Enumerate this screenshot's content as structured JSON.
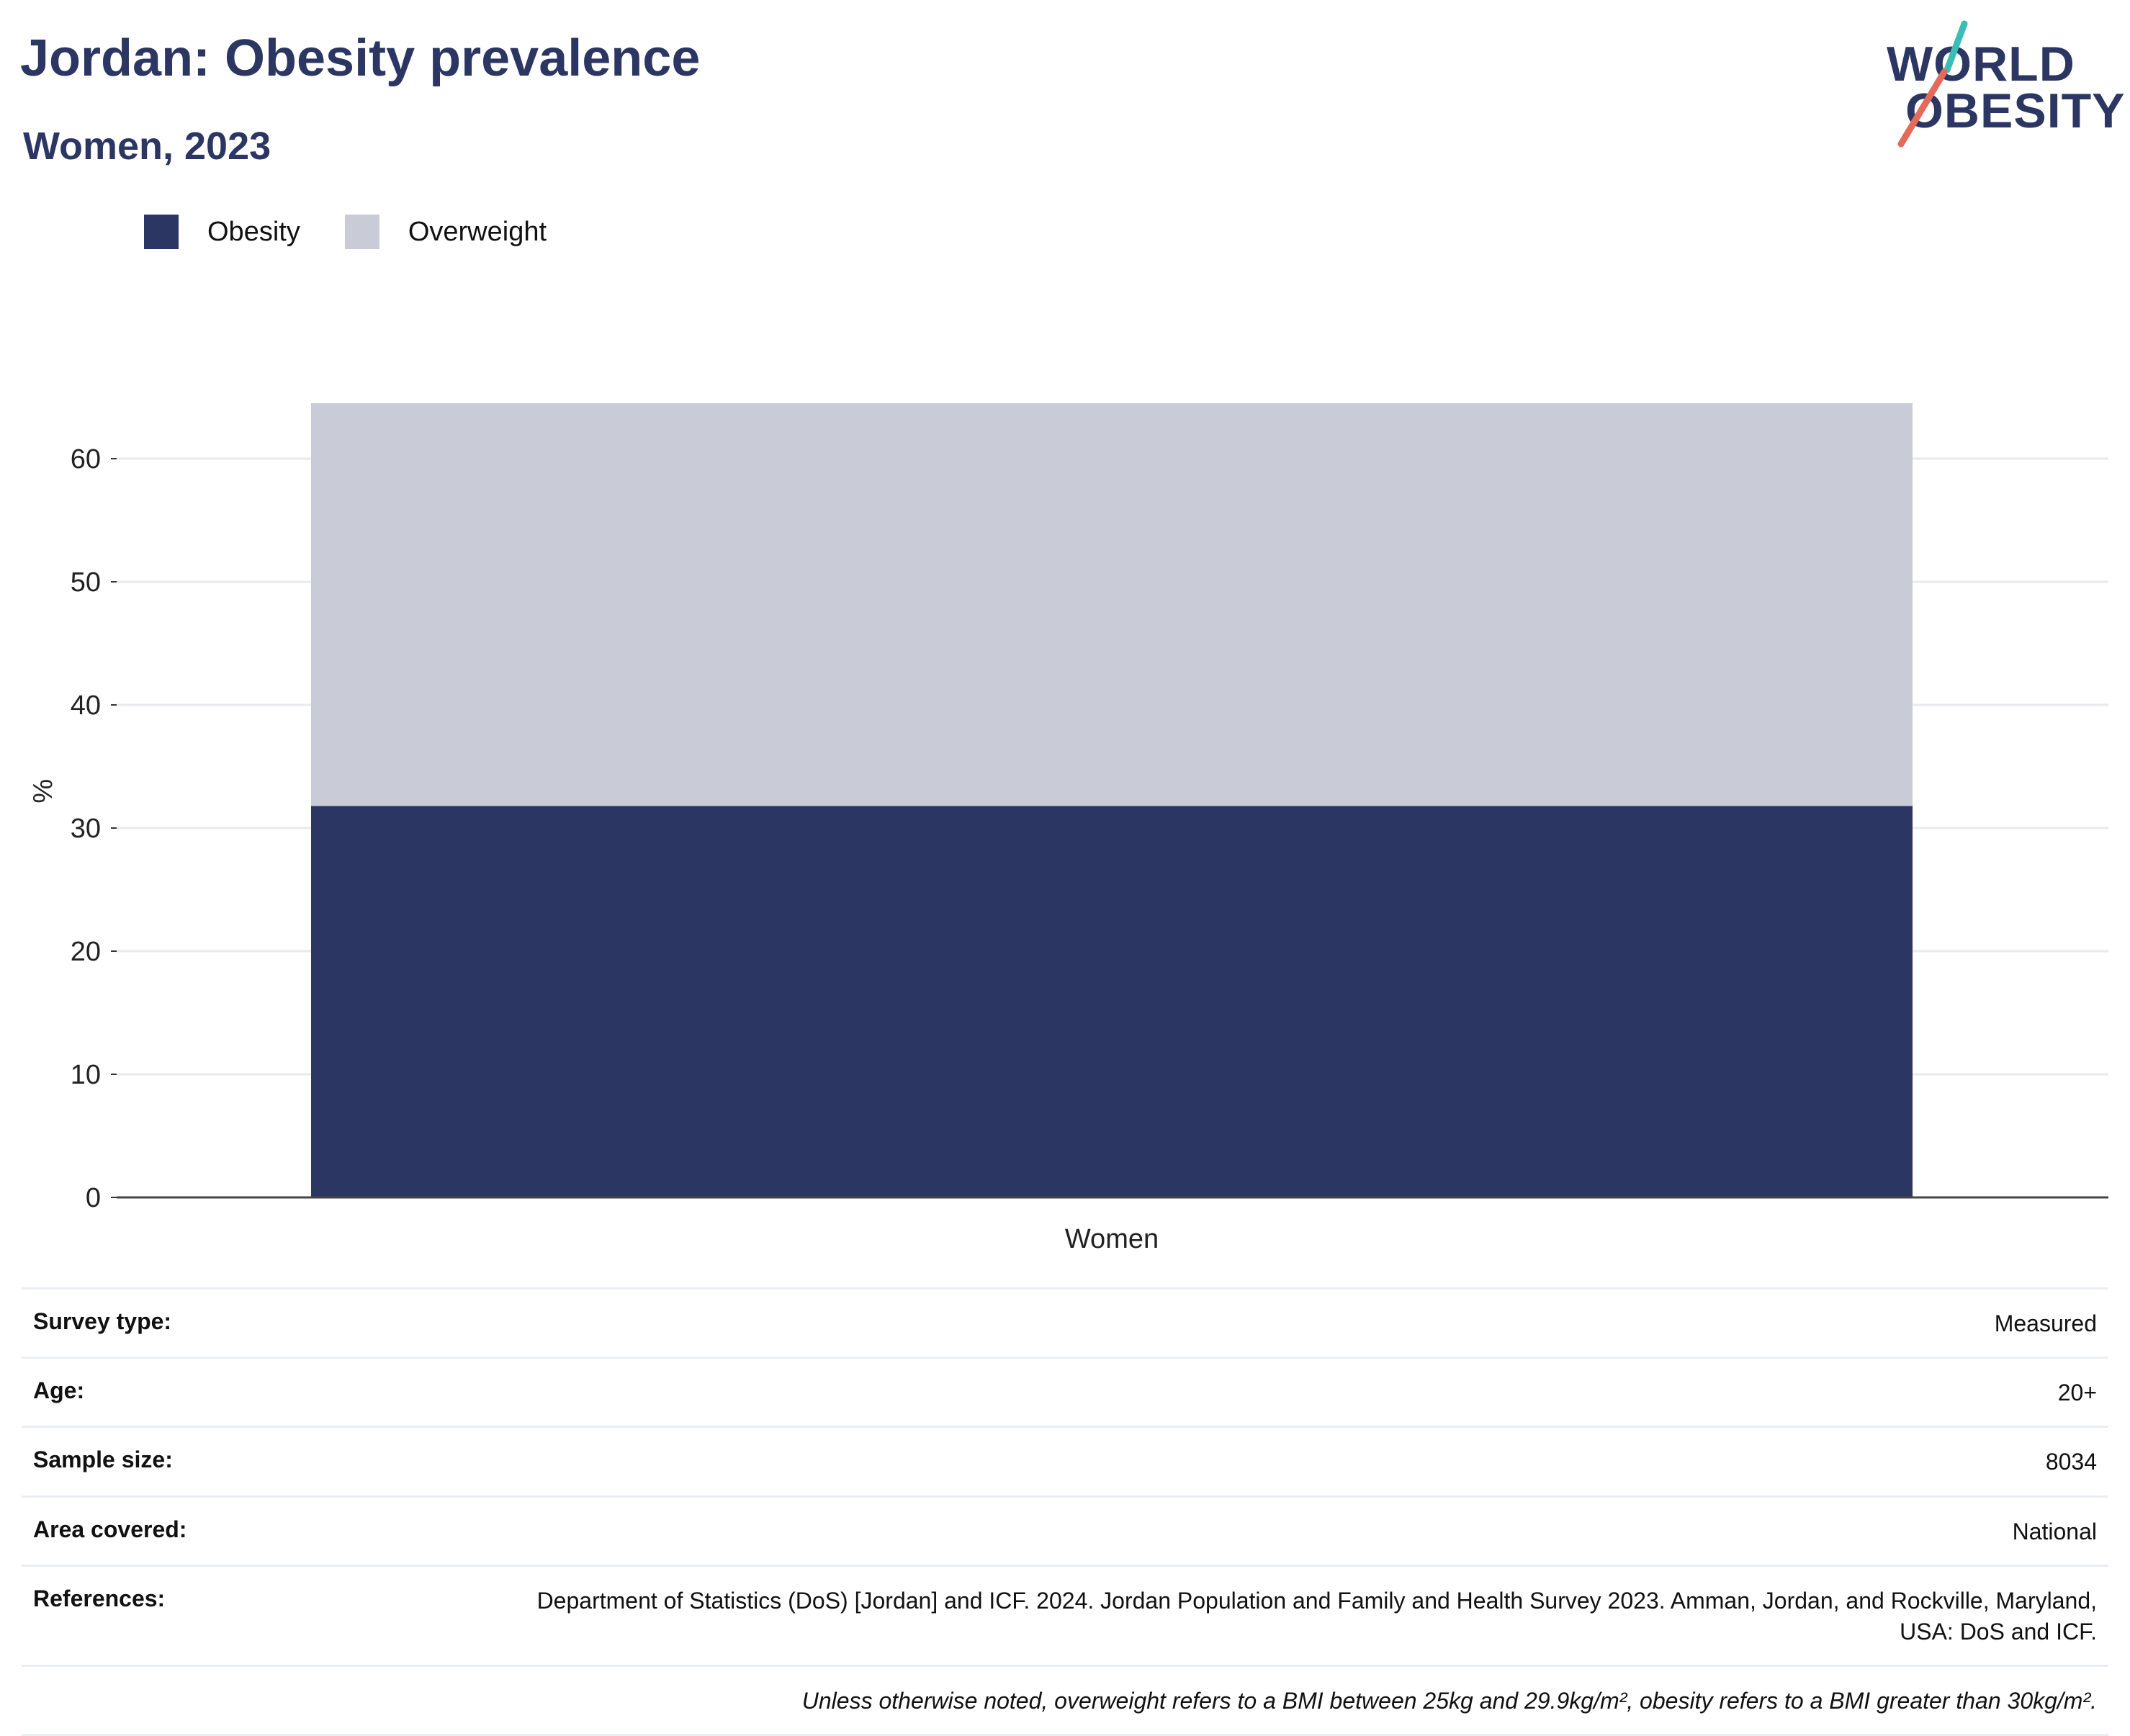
{
  "header": {
    "title": "Jordan: Obesity prevalence",
    "subtitle": "Women, 2023"
  },
  "logo": {
    "line1": "WORLD",
    "line2": "OBESITY",
    "accent_colors": [
      "#3bbdb5",
      "#e46a5a"
    ]
  },
  "legend": {
    "items": [
      {
        "label": "Obesity",
        "color": "#2b3663"
      },
      {
        "label": "Overweight",
        "color": "#c9ccd7"
      }
    ]
  },
  "chart_data": {
    "type": "bar",
    "stacked": true,
    "categories": [
      "Women"
    ],
    "series": [
      {
        "name": "Obesity",
        "values": [
          31.8
        ],
        "color": "#2b3663"
      },
      {
        "name": "Overweight",
        "values": [
          32.7
        ],
        "color": "#c9ccd7"
      }
    ],
    "xlabel": "",
    "ylabel": "%",
    "ylim": [
      0,
      70
    ],
    "yticks": [
      0,
      10,
      20,
      30,
      40,
      50,
      60
    ],
    "grid": true,
    "legend_position": "top-left"
  },
  "info": {
    "rows": [
      {
        "key": "Survey type:",
        "value": "Measured"
      },
      {
        "key": "Age:",
        "value": "20+"
      },
      {
        "key": "Sample size:",
        "value": "8034"
      },
      {
        "key": "Area covered:",
        "value": "National"
      },
      {
        "key": "References:",
        "value": "Department of Statistics (DoS) [Jordan] and ICF. 2024. Jordan Population and Family and Health Survey 2023. Amman, Jordan, and Rockville, Maryland, USA: DoS and ICF."
      }
    ],
    "note": "Unless otherwise noted, overweight refers to a BMI between 25kg and 29.9kg/m², obesity refers to a BMI greater than 30kg/m²."
  }
}
